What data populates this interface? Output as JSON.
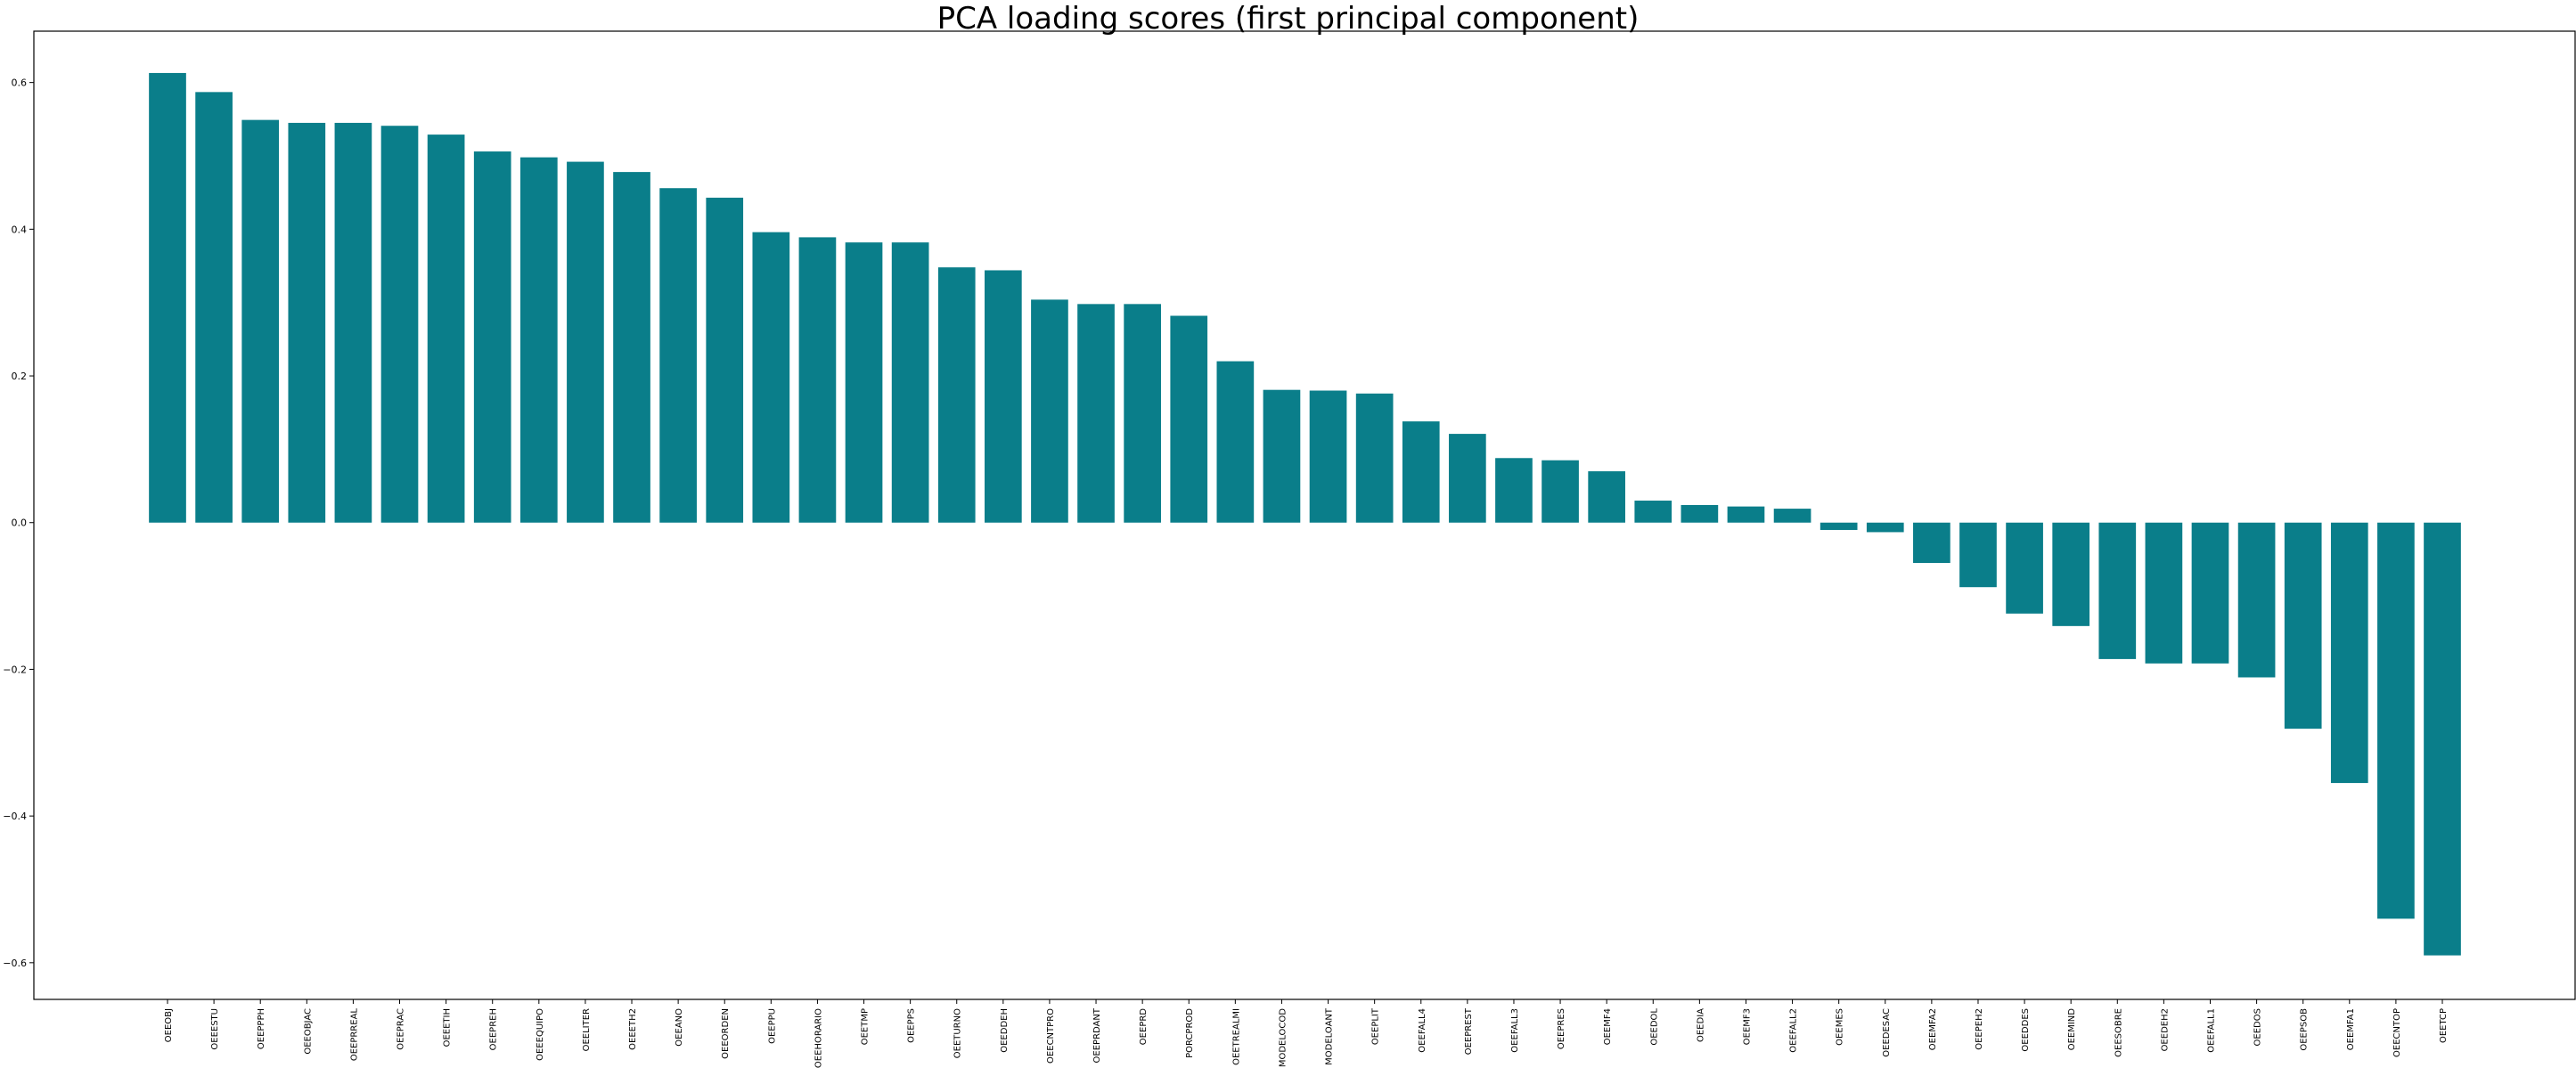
{
  "chart_data": {
    "type": "bar",
    "title": "PCA loading scores (first principal component)",
    "xlabel": "",
    "ylabel": "",
    "ylim": [
      -0.65,
      0.67
    ],
    "yticks": [
      -0.6,
      -0.4,
      -0.2,
      0.0,
      0.2,
      0.4,
      0.6
    ],
    "ytick_labels": [
      "−0.6",
      "−0.4",
      "−0.2",
      "0.0",
      "0.2",
      "0.4",
      "0.6"
    ],
    "grid": false,
    "bar_color": "#0a7e8a",
    "categories": [
      "OEEOBJ",
      "OEEESTU",
      "OEEPPPH",
      "OEEOBJAC",
      "OEEPRREAL",
      "OEEPRAC",
      "OEEETIH",
      "OEEPREH",
      "OEEEQUIPO",
      "OEELITER",
      "OEEETH2",
      "OEEANO",
      "OEEORDEN",
      "OEEPPU",
      "OEEHORARIO",
      "OEETMP",
      "OEEPPS",
      "OEETURNO",
      "OEEDDEH",
      "OEECNTPRO",
      "OEEPRDANT",
      "OEEPRD",
      "PORCPROD",
      "OEETREALMI",
      "MODELOCOD",
      "MODELOANT",
      "OEEPLIT",
      "OEEFALL4",
      "OEEPREST",
      "OEEFALL3",
      "OEEPRES",
      "OEEMF4",
      "OEEDOL",
      "OEEDIA",
      "OEEMF3",
      "OEEFALL2",
      "OEEMES",
      "OEEDESAC",
      "OEEMFA2",
      "OEEPEH2",
      "OEEDDES",
      "OEEMIND",
      "OEESOBRE",
      "OEEDEH2",
      "OEEFALL1",
      "OEEDOS",
      "OEEPSOB",
      "OEEMFA1",
      "OEECNTOP",
      "OEETCP"
    ],
    "values": [
      0.613,
      0.587,
      0.549,
      0.545,
      0.545,
      0.541,
      0.529,
      0.506,
      0.498,
      0.492,
      0.478,
      0.456,
      0.443,
      0.396,
      0.389,
      0.382,
      0.382,
      0.348,
      0.344,
      0.304,
      0.298,
      0.298,
      0.282,
      0.22,
      0.181,
      0.18,
      0.176,
      0.138,
      0.121,
      0.088,
      0.085,
      0.07,
      0.03,
      0.024,
      0.022,
      0.019,
      -0.01,
      -0.013,
      -0.055,
      -0.088,
      -0.124,
      -0.141,
      -0.186,
      -0.192,
      -0.192,
      -0.211,
      -0.281,
      -0.355,
      -0.54,
      -0.59
    ]
  }
}
